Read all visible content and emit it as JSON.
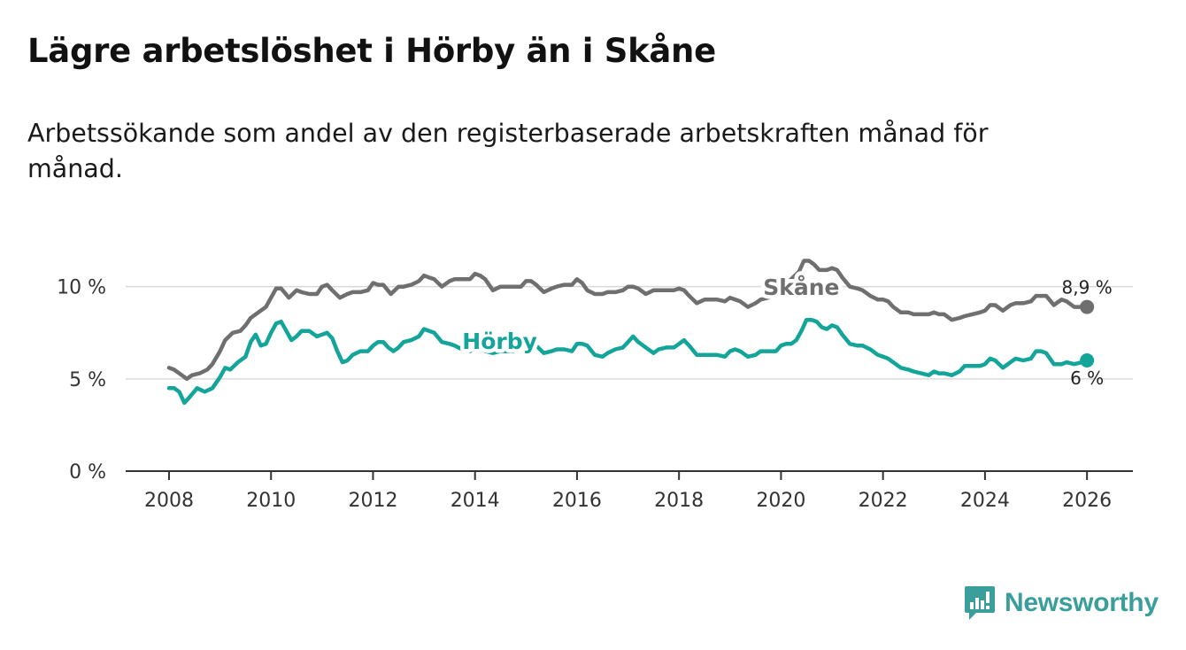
{
  "header": {
    "title": "Lägre arbetslöshet i Hörby än i Skåne",
    "subtitle": "Arbetssökande som andel av den registerbaserade arbetskraften månad för månad."
  },
  "brand": {
    "name": "Newsworthy",
    "color": "#3a9e9a"
  },
  "chart_data": {
    "type": "line",
    "title": "Lägre arbetslöshet i Hörby än i Skåne",
    "subtitle": "Arbetssökande som andel av den registerbaserade arbetskraften månad för månad.",
    "xlabel": "",
    "ylabel": "",
    "xlim": [
      2007.15,
      2026.9
    ],
    "ylim": [
      0,
      12
    ],
    "x_ticks": [
      2008,
      2010,
      2012,
      2014,
      2016,
      2018,
      2020,
      2022,
      2024,
      2026
    ],
    "x_tick_labels": [
      "2008",
      "2010",
      "2012",
      "2014",
      "2016",
      "2018",
      "2020",
      "2022",
      "2024",
      "2026"
    ],
    "y_ticks": [
      0,
      5,
      10
    ],
    "y_tick_labels": [
      "0 %",
      "5 %",
      "10 %"
    ],
    "grid": true,
    "series": [
      {
        "name": "Skåne",
        "color": "#6f6f6f",
        "end_label": "8,9 %",
        "points": [
          [
            2008.0,
            5.6
          ],
          [
            2008.1,
            5.5
          ],
          [
            2008.2,
            5.3
          ],
          [
            2008.35,
            5.0
          ],
          [
            2008.45,
            5.2
          ],
          [
            2008.6,
            5.3
          ],
          [
            2008.75,
            5.5
          ],
          [
            2008.85,
            5.8
          ],
          [
            2009.0,
            6.5
          ],
          [
            2009.1,
            7.1
          ],
          [
            2009.25,
            7.5
          ],
          [
            2009.4,
            7.6
          ],
          [
            2009.5,
            7.9
          ],
          [
            2009.6,
            8.3
          ],
          [
            2009.75,
            8.6
          ],
          [
            2009.9,
            8.9
          ],
          [
            2010.0,
            9.4
          ],
          [
            2010.1,
            9.9
          ],
          [
            2010.2,
            9.9
          ],
          [
            2010.35,
            9.4
          ],
          [
            2010.5,
            9.8
          ],
          [
            2010.6,
            9.7
          ],
          [
            2010.75,
            9.6
          ],
          [
            2010.9,
            9.6
          ],
          [
            2011.0,
            10.0
          ],
          [
            2011.1,
            10.1
          ],
          [
            2011.2,
            9.8
          ],
          [
            2011.35,
            9.4
          ],
          [
            2011.5,
            9.6
          ],
          [
            2011.6,
            9.7
          ],
          [
            2011.75,
            9.7
          ],
          [
            2011.9,
            9.8
          ],
          [
            2012.0,
            10.2
          ],
          [
            2012.1,
            10.1
          ],
          [
            2012.2,
            10.1
          ],
          [
            2012.35,
            9.6
          ],
          [
            2012.5,
            10.0
          ],
          [
            2012.6,
            10.0
          ],
          [
            2012.75,
            10.1
          ],
          [
            2012.9,
            10.3
          ],
          [
            2013.0,
            10.6
          ],
          [
            2013.1,
            10.5
          ],
          [
            2013.2,
            10.4
          ],
          [
            2013.35,
            10.0
          ],
          [
            2013.5,
            10.3
          ],
          [
            2013.6,
            10.4
          ],
          [
            2013.75,
            10.4
          ],
          [
            2013.9,
            10.4
          ],
          [
            2014.0,
            10.7
          ],
          [
            2014.1,
            10.6
          ],
          [
            2014.2,
            10.4
          ],
          [
            2014.35,
            9.8
          ],
          [
            2014.5,
            10.0
          ],
          [
            2014.6,
            10.0
          ],
          [
            2014.75,
            10.0
          ],
          [
            2014.9,
            10.0
          ],
          [
            2015.0,
            10.3
          ],
          [
            2015.1,
            10.3
          ],
          [
            2015.2,
            10.1
          ],
          [
            2015.35,
            9.7
          ],
          [
            2015.5,
            9.9
          ],
          [
            2015.6,
            10.0
          ],
          [
            2015.75,
            10.1
          ],
          [
            2015.9,
            10.1
          ],
          [
            2016.0,
            10.4
          ],
          [
            2016.1,
            10.2
          ],
          [
            2016.2,
            9.8
          ],
          [
            2016.35,
            9.6
          ],
          [
            2016.5,
            9.6
          ],
          [
            2016.6,
            9.7
          ],
          [
            2016.75,
            9.7
          ],
          [
            2016.9,
            9.8
          ],
          [
            2017.0,
            10.0
          ],
          [
            2017.1,
            10.0
          ],
          [
            2017.2,
            9.9
          ],
          [
            2017.35,
            9.6
          ],
          [
            2017.5,
            9.8
          ],
          [
            2017.6,
            9.8
          ],
          [
            2017.75,
            9.8
          ],
          [
            2017.9,
            9.8
          ],
          [
            2018.0,
            9.9
          ],
          [
            2018.1,
            9.8
          ],
          [
            2018.2,
            9.5
          ],
          [
            2018.35,
            9.1
          ],
          [
            2018.5,
            9.3
          ],
          [
            2018.6,
            9.3
          ],
          [
            2018.75,
            9.3
          ],
          [
            2018.9,
            9.2
          ],
          [
            2019.0,
            9.4
          ],
          [
            2019.1,
            9.3
          ],
          [
            2019.2,
            9.2
          ],
          [
            2019.35,
            8.9
          ],
          [
            2019.5,
            9.1
          ],
          [
            2019.6,
            9.3
          ],
          [
            2019.75,
            9.4
          ],
          [
            2019.9,
            9.5
          ],
          [
            2020.0,
            9.9
          ],
          [
            2020.1,
            10.2
          ],
          [
            2020.2,
            10.4
          ],
          [
            2020.35,
            10.8
          ],
          [
            2020.45,
            11.4
          ],
          [
            2020.55,
            11.4
          ],
          [
            2020.65,
            11.2
          ],
          [
            2020.75,
            10.9
          ],
          [
            2020.9,
            10.9
          ],
          [
            2021.0,
            11.0
          ],
          [
            2021.1,
            10.9
          ],
          [
            2021.2,
            10.5
          ],
          [
            2021.35,
            10.0
          ],
          [
            2021.5,
            9.9
          ],
          [
            2021.6,
            9.8
          ],
          [
            2021.75,
            9.5
          ],
          [
            2021.9,
            9.3
          ],
          [
            2022.0,
            9.3
          ],
          [
            2022.1,
            9.2
          ],
          [
            2022.2,
            8.9
          ],
          [
            2022.35,
            8.6
          ],
          [
            2022.5,
            8.6
          ],
          [
            2022.6,
            8.5
          ],
          [
            2022.75,
            8.5
          ],
          [
            2022.9,
            8.5
          ],
          [
            2023.0,
            8.6
          ],
          [
            2023.1,
            8.5
          ],
          [
            2023.2,
            8.5
          ],
          [
            2023.35,
            8.2
          ],
          [
            2023.5,
            8.3
          ],
          [
            2023.6,
            8.4
          ],
          [
            2023.75,
            8.5
          ],
          [
            2023.9,
            8.6
          ],
          [
            2024.0,
            8.7
          ],
          [
            2024.1,
            9.0
          ],
          [
            2024.2,
            9.0
          ],
          [
            2024.35,
            8.7
          ],
          [
            2024.5,
            9.0
          ],
          [
            2024.6,
            9.1
          ],
          [
            2024.75,
            9.1
          ],
          [
            2024.9,
            9.2
          ],
          [
            2025.0,
            9.5
          ],
          [
            2025.1,
            9.5
          ],
          [
            2025.2,
            9.5
          ],
          [
            2025.35,
            9.0
          ],
          [
            2025.5,
            9.3
          ],
          [
            2025.6,
            9.2
          ],
          [
            2025.75,
            8.9
          ],
          [
            2025.9,
            8.9
          ],
          [
            2026.0,
            8.9
          ]
        ]
      },
      {
        "name": "Hörby",
        "color": "#14a59a",
        "end_label": "6 %",
        "points": [
          [
            2008.0,
            4.5
          ],
          [
            2008.1,
            4.5
          ],
          [
            2008.2,
            4.3
          ],
          [
            2008.3,
            3.7
          ],
          [
            2008.4,
            4.0
          ],
          [
            2008.55,
            4.5
          ],
          [
            2008.7,
            4.3
          ],
          [
            2008.85,
            4.5
          ],
          [
            2009.0,
            5.1
          ],
          [
            2009.1,
            5.6
          ],
          [
            2009.2,
            5.5
          ],
          [
            2009.35,
            5.9
          ],
          [
            2009.5,
            6.2
          ],
          [
            2009.6,
            7.0
          ],
          [
            2009.7,
            7.4
          ],
          [
            2009.8,
            6.8
          ],
          [
            2009.9,
            6.9
          ],
          [
            2010.0,
            7.5
          ],
          [
            2010.1,
            8.0
          ],
          [
            2010.2,
            8.1
          ],
          [
            2010.3,
            7.6
          ],
          [
            2010.4,
            7.1
          ],
          [
            2010.5,
            7.3
          ],
          [
            2010.6,
            7.6
          ],
          [
            2010.75,
            7.6
          ],
          [
            2010.9,
            7.3
          ],
          [
            2011.0,
            7.4
          ],
          [
            2011.1,
            7.5
          ],
          [
            2011.2,
            7.2
          ],
          [
            2011.3,
            6.5
          ],
          [
            2011.4,
            5.9
          ],
          [
            2011.5,
            6.0
          ],
          [
            2011.6,
            6.3
          ],
          [
            2011.75,
            6.5
          ],
          [
            2011.9,
            6.5
          ],
          [
            2012.0,
            6.8
          ],
          [
            2012.1,
            7.0
          ],
          [
            2012.2,
            7.0
          ],
          [
            2012.3,
            6.7
          ],
          [
            2012.4,
            6.5
          ],
          [
            2012.5,
            6.7
          ],
          [
            2012.6,
            7.0
          ],
          [
            2012.75,
            7.1
          ],
          [
            2012.9,
            7.3
          ],
          [
            2013.0,
            7.7
          ],
          [
            2013.1,
            7.6
          ],
          [
            2013.2,
            7.5
          ],
          [
            2013.35,
            7.0
          ],
          [
            2013.5,
            6.9
          ],
          [
            2013.6,
            6.8
          ],
          [
            2013.75,
            6.6
          ],
          [
            2013.9,
            6.5
          ],
          [
            2014.0,
            6.8
          ],
          [
            2014.1,
            6.7
          ],
          [
            2014.2,
            6.5
          ],
          [
            2014.35,
            6.4
          ],
          [
            2014.5,
            6.5
          ],
          [
            2014.6,
            6.5
          ],
          [
            2014.75,
            6.5
          ],
          [
            2014.9,
            6.8
          ],
          [
            2015.0,
            7.1
          ],
          [
            2015.1,
            7.2
          ],
          [
            2015.2,
            6.8
          ],
          [
            2015.35,
            6.4
          ],
          [
            2015.5,
            6.5
          ],
          [
            2015.6,
            6.6
          ],
          [
            2015.75,
            6.6
          ],
          [
            2015.9,
            6.5
          ],
          [
            2016.0,
            6.9
          ],
          [
            2016.1,
            6.9
          ],
          [
            2016.2,
            6.8
          ],
          [
            2016.35,
            6.3
          ],
          [
            2016.5,
            6.2
          ],
          [
            2016.6,
            6.4
          ],
          [
            2016.75,
            6.6
          ],
          [
            2016.9,
            6.7
          ],
          [
            2017.0,
            7.0
          ],
          [
            2017.1,
            7.3
          ],
          [
            2017.2,
            7.0
          ],
          [
            2017.35,
            6.7
          ],
          [
            2017.5,
            6.4
          ],
          [
            2017.6,
            6.6
          ],
          [
            2017.75,
            6.7
          ],
          [
            2017.9,
            6.7
          ],
          [
            2018.0,
            6.9
          ],
          [
            2018.1,
            7.1
          ],
          [
            2018.2,
            6.8
          ],
          [
            2018.35,
            6.3
          ],
          [
            2018.5,
            6.3
          ],
          [
            2018.6,
            6.3
          ],
          [
            2018.75,
            6.3
          ],
          [
            2018.9,
            6.2
          ],
          [
            2019.0,
            6.5
          ],
          [
            2019.1,
            6.6
          ],
          [
            2019.2,
            6.5
          ],
          [
            2019.35,
            6.2
          ],
          [
            2019.5,
            6.3
          ],
          [
            2019.6,
            6.5
          ],
          [
            2019.75,
            6.5
          ],
          [
            2019.9,
            6.5
          ],
          [
            2020.0,
            6.8
          ],
          [
            2020.1,
            6.9
          ],
          [
            2020.2,
            6.9
          ],
          [
            2020.3,
            7.1
          ],
          [
            2020.4,
            7.6
          ],
          [
            2020.5,
            8.2
          ],
          [
            2020.6,
            8.2
          ],
          [
            2020.7,
            8.1
          ],
          [
            2020.8,
            7.8
          ],
          [
            2020.9,
            7.7
          ],
          [
            2021.0,
            7.9
          ],
          [
            2021.1,
            7.8
          ],
          [
            2021.2,
            7.4
          ],
          [
            2021.35,
            6.9
          ],
          [
            2021.5,
            6.8
          ],
          [
            2021.6,
            6.8
          ],
          [
            2021.75,
            6.6
          ],
          [
            2021.9,
            6.3
          ],
          [
            2022.0,
            6.2
          ],
          [
            2022.1,
            6.1
          ],
          [
            2022.2,
            5.9
          ],
          [
            2022.35,
            5.6
          ],
          [
            2022.5,
            5.5
          ],
          [
            2022.6,
            5.4
          ],
          [
            2022.75,
            5.3
          ],
          [
            2022.9,
            5.2
          ],
          [
            2023.0,
            5.4
          ],
          [
            2023.1,
            5.3
          ],
          [
            2023.2,
            5.3
          ],
          [
            2023.35,
            5.2
          ],
          [
            2023.5,
            5.4
          ],
          [
            2023.6,
            5.7
          ],
          [
            2023.75,
            5.7
          ],
          [
            2023.9,
            5.7
          ],
          [
            2024.0,
            5.8
          ],
          [
            2024.1,
            6.1
          ],
          [
            2024.2,
            6.0
          ],
          [
            2024.35,
            5.6
          ],
          [
            2024.5,
            5.9
          ],
          [
            2024.6,
            6.1
          ],
          [
            2024.75,
            6.0
          ],
          [
            2024.9,
            6.1
          ],
          [
            2025.0,
            6.5
          ],
          [
            2025.1,
            6.5
          ],
          [
            2025.2,
            6.4
          ],
          [
            2025.35,
            5.8
          ],
          [
            2025.5,
            5.8
          ],
          [
            2025.6,
            5.9
          ],
          [
            2025.75,
            5.8
          ],
          [
            2025.9,
            5.9
          ],
          [
            2026.0,
            6.0
          ]
        ]
      }
    ]
  }
}
